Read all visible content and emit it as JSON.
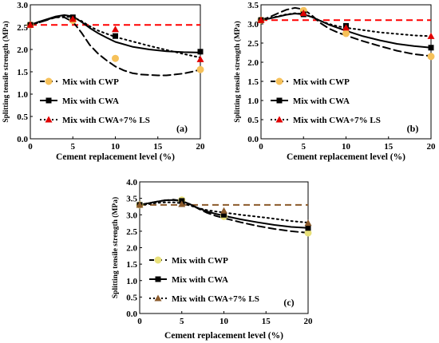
{
  "chart_data": [
    {
      "type": "line",
      "panel_label": "(a)",
      "xlabel": "Cement replacement level (%)",
      "ylabel": "Splitting tensile strength (MPa)",
      "xlim": [
        0,
        20
      ],
      "ylim": [
        0,
        3.0
      ],
      "xticks": [
        0,
        5,
        10,
        15,
        20
      ],
      "yticks": [
        0,
        0.5,
        1.0,
        1.5,
        2.0,
        2.5,
        3.0
      ],
      "ytick_labels": [
        "0.0",
        "0.5",
        "1.0",
        "1.5",
        "2.0",
        "2.5",
        "3.0"
      ],
      "xtick_labels": [
        "0",
        "5",
        "10",
        "15",
        "20"
      ],
      "x": [
        0,
        5,
        10,
        20
      ],
      "reference_line": 2.55,
      "reference_color": "#ff0000",
      "legend_position": "left",
      "series": [
        {
          "name": "Mix with CWP",
          "values": [
            2.55,
            2.65,
            1.8,
            1.55
          ],
          "marker": "circle",
          "marker_color": "#f6c15a",
          "line_style": "dashed",
          "trend": [
            [
              0,
              2.55
            ],
            [
              1,
              2.6
            ],
            [
              2,
              2.66
            ],
            [
              3,
              2.72
            ],
            [
              4,
              2.72
            ],
            [
              5,
              2.62
            ],
            [
              6,
              2.38
            ],
            [
              7,
              2.1
            ],
            [
              8,
              1.9
            ],
            [
              9,
              1.75
            ],
            [
              10,
              1.62
            ],
            [
              11,
              1.53
            ],
            [
              12,
              1.47
            ],
            [
              13,
              1.44
            ],
            [
              14,
              1.43
            ],
            [
              15,
              1.42
            ],
            [
              16,
              1.42
            ],
            [
              17,
              1.44
            ],
            [
              18,
              1.46
            ],
            [
              19,
              1.5
            ],
            [
              20,
              1.55
            ]
          ]
        },
        {
          "name": "Mix with CWA",
          "values": [
            2.55,
            2.72,
            2.3,
            1.95
          ],
          "marker": "square",
          "marker_color": "#000000",
          "line_style": "solid",
          "trend": [
            [
              0,
              2.55
            ],
            [
              1,
              2.62
            ],
            [
              2,
              2.68
            ],
            [
              3,
              2.74
            ],
            [
              4,
              2.77
            ],
            [
              5,
              2.74
            ],
            [
              6,
              2.62
            ],
            [
              7,
              2.48
            ],
            [
              8,
              2.36
            ],
            [
              9,
              2.26
            ],
            [
              10,
              2.17
            ],
            [
              12,
              2.06
            ],
            [
              14,
              2.0
            ],
            [
              16,
              1.96
            ],
            [
              18,
              1.94
            ],
            [
              20,
              1.93
            ]
          ]
        },
        {
          "name": "Mix with CWA+7% LS",
          "values": [
            2.55,
            2.68,
            2.45,
            1.78
          ],
          "marker": "triangle",
          "marker_color": "#e00000",
          "line_style": "dotted",
          "trend": [
            [
              0,
              2.55
            ],
            [
              1,
              2.6
            ],
            [
              2,
              2.67
            ],
            [
              3,
              2.72
            ],
            [
              4,
              2.74
            ],
            [
              5,
              2.72
            ],
            [
              6,
              2.64
            ],
            [
              7,
              2.52
            ],
            [
              8,
              2.42
            ],
            [
              9,
              2.35
            ],
            [
              10,
              2.28
            ],
            [
              12,
              2.18
            ],
            [
              14,
              2.08
            ],
            [
              16,
              1.99
            ],
            [
              18,
              1.9
            ],
            [
              20,
              1.82
            ]
          ]
        }
      ]
    },
    {
      "type": "line",
      "panel_label": "(b)",
      "xlabel": "Cement replacement level (%)",
      "ylabel": "Splitting tensile strength (MPa)",
      "xlim": [
        0,
        20
      ],
      "ylim": [
        0,
        3.5
      ],
      "xticks": [
        0,
        5,
        10,
        15,
        20
      ],
      "yticks": [
        0,
        0.5,
        1.0,
        1.5,
        2.0,
        2.5,
        3.0,
        3.5
      ],
      "ytick_labels": [
        "0.0",
        "0.5",
        "1.0",
        "1.5",
        "2.0",
        "2.5",
        "3.0",
        "3.5"
      ],
      "xtick_labels": [
        "0",
        "5",
        "10",
        "15",
        "20"
      ],
      "x": [
        0,
        5,
        10,
        20
      ],
      "reference_line": 3.1,
      "reference_color": "#ff0000",
      "legend_position": "left",
      "series": [
        {
          "name": "Mix with CWP",
          "values": [
            3.1,
            3.35,
            2.75,
            2.15
          ],
          "marker": "circle",
          "marker_color": "#f6c15a",
          "line_style": "dashed",
          "trend": [
            [
              0,
              3.1
            ],
            [
              1,
              3.18
            ],
            [
              2,
              3.28
            ],
            [
              3,
              3.37
            ],
            [
              4,
              3.42
            ],
            [
              5,
              3.38
            ],
            [
              6,
              3.22
            ],
            [
              7,
              3.02
            ],
            [
              8,
              2.88
            ],
            [
              9,
              2.78
            ],
            [
              10,
              2.7
            ],
            [
              12,
              2.55
            ],
            [
              14,
              2.42
            ],
            [
              16,
              2.3
            ],
            [
              18,
              2.21
            ],
            [
              20,
              2.16
            ]
          ]
        },
        {
          "name": "Mix with CWA",
          "values": [
            3.1,
            3.25,
            2.95,
            2.38
          ],
          "marker": "square",
          "marker_color": "#000000",
          "line_style": "solid",
          "trend": [
            [
              0,
              3.1
            ],
            [
              1,
              3.14
            ],
            [
              2,
              3.19
            ],
            [
              3,
              3.24
            ],
            [
              4,
              3.27
            ],
            [
              5,
              3.25
            ],
            [
              6,
              3.18
            ],
            [
              7,
              3.08
            ],
            [
              8,
              2.98
            ],
            [
              9,
              2.9
            ],
            [
              10,
              2.82
            ],
            [
              12,
              2.68
            ],
            [
              14,
              2.57
            ],
            [
              16,
              2.48
            ],
            [
              18,
              2.42
            ],
            [
              20,
              2.38
            ]
          ]
        },
        {
          "name": "Mix with CWA+7% LS",
          "values": [
            3.1,
            3.28,
            2.9,
            2.68
          ],
          "marker": "triangle",
          "marker_color": "#e00000",
          "line_style": "dotted",
          "trend": [
            [
              0,
              3.1
            ],
            [
              1,
              3.15
            ],
            [
              2,
              3.2
            ],
            [
              3,
              3.25
            ],
            [
              4,
              3.28
            ],
            [
              5,
              3.26
            ],
            [
              6,
              3.18
            ],
            [
              7,
              3.08
            ],
            [
              8,
              3.0
            ],
            [
              9,
              2.94
            ],
            [
              10,
              2.9
            ],
            [
              12,
              2.84
            ],
            [
              14,
              2.78
            ],
            [
              16,
              2.74
            ],
            [
              18,
              2.7
            ],
            [
              20,
              2.68
            ]
          ]
        }
      ]
    },
    {
      "type": "line",
      "panel_label": "(c)",
      "xlabel": "Cement replacement level (%)",
      "ylabel": "Splitting tensile strength (MPa)",
      "xlim": [
        0,
        20
      ],
      "ylim": [
        0,
        4.0
      ],
      "xticks": [
        0,
        5,
        10,
        15,
        20
      ],
      "yticks": [
        0,
        0.5,
        1.0,
        1.5,
        2.0,
        2.5,
        3.0,
        3.5,
        4.0
      ],
      "ytick_labels": [
        "0.0",
        "0.5",
        "1.0",
        "1.5",
        "2.0",
        "2.5",
        "3.0",
        "3.5",
        "4.0"
      ],
      "xtick_labels": [
        "0",
        "5",
        "10",
        "15",
        "20"
      ],
      "x": [
        0,
        5,
        10,
        20
      ],
      "reference_line": 3.3,
      "reference_color": "#8b5a2b",
      "legend_position": "left",
      "series": [
        {
          "name": "Mix with CWP",
          "values": [
            3.3,
            3.45,
            2.95,
            2.45
          ],
          "marker": "circle",
          "marker_color": "#e8e07a",
          "line_style": "dashed",
          "trend": [
            [
              0,
              3.3
            ],
            [
              1,
              3.35
            ],
            [
              2,
              3.4
            ],
            [
              3,
              3.44
            ],
            [
              4,
              3.46
            ],
            [
              5,
              3.42
            ],
            [
              6,
              3.32
            ],
            [
              7,
              3.18
            ],
            [
              8,
              3.06
            ],
            [
              9,
              2.97
            ],
            [
              10,
              2.9
            ],
            [
              12,
              2.77
            ],
            [
              14,
              2.66
            ],
            [
              16,
              2.57
            ],
            [
              18,
              2.5
            ],
            [
              20,
              2.45
            ]
          ]
        },
        {
          "name": "Mix with CWA",
          "values": [
            3.3,
            3.42,
            3.0,
            2.6
          ],
          "marker": "square",
          "marker_color": "#000000",
          "line_style": "solid",
          "trend": [
            [
              0,
              3.3
            ],
            [
              1,
              3.35
            ],
            [
              2,
              3.4
            ],
            [
              3,
              3.44
            ],
            [
              4,
              3.45
            ],
            [
              5,
              3.41
            ],
            [
              6,
              3.32
            ],
            [
              7,
              3.2
            ],
            [
              8,
              3.1
            ],
            [
              9,
              3.03
            ],
            [
              10,
              2.97
            ],
            [
              12,
              2.86
            ],
            [
              14,
              2.77
            ],
            [
              16,
              2.69
            ],
            [
              18,
              2.63
            ],
            [
              20,
              2.6
            ]
          ]
        },
        {
          "name": "Mix with CWA+7% LS",
          "values": [
            3.3,
            3.32,
            3.12,
            2.75
          ],
          "marker": "triangle",
          "marker_color": "#8b5a2b",
          "line_style": "dotted",
          "trend": [
            [
              0,
              3.3
            ],
            [
              1,
              3.32
            ],
            [
              2,
              3.36
            ],
            [
              3,
              3.38
            ],
            [
              4,
              3.38
            ],
            [
              5,
              3.35
            ],
            [
              6,
              3.28
            ],
            [
              7,
              3.2
            ],
            [
              8,
              3.14
            ],
            [
              9,
              3.1
            ],
            [
              10,
              3.07
            ],
            [
              12,
              3.0
            ],
            [
              14,
              2.94
            ],
            [
              16,
              2.88
            ],
            [
              18,
              2.81
            ],
            [
              20,
              2.76
            ]
          ]
        }
      ]
    }
  ]
}
